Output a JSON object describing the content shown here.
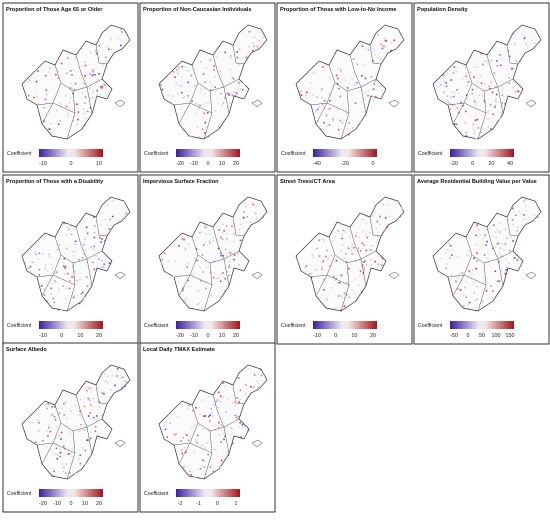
{
  "panels": [
    {
      "title": "Proportion of Those Age 65 or Older",
      "legend_label": "Coefficient",
      "ticks": [
        -10,
        0,
        10
      ]
    },
    {
      "title": "Proportion of Non-Caucasian Individuals",
      "legend_label": "Coefficient",
      "ticks": [
        -20,
        -10,
        0,
        10,
        20
      ]
    },
    {
      "title": "Proportion of Those with Low-to-No Income",
      "legend_label": "Coefficient",
      "ticks": [
        -40,
        -20,
        0
      ]
    },
    {
      "title": "Population Density",
      "legend_label": "Coefficient",
      "ticks": [
        -20,
        0,
        20,
        40
      ]
    },
    {
      "title": "Proportion of Those with a Disability",
      "legend_label": "Coefficient",
      "ticks": [
        -10,
        0,
        10,
        20
      ]
    },
    {
      "title": "Impervious Surface Fraction",
      "legend_label": "Coefficient",
      "ticks": [
        -20,
        -10,
        0,
        10,
        20
      ]
    },
    {
      "title": "Street Trees/CT Area",
      "legend_label": "Coefficient",
      "ticks": [
        -10,
        0,
        10,
        20
      ]
    },
    {
      "title": "Average Residential Building Value per Value",
      "legend_label": "Coefficient",
      "ticks": [
        -50,
        0,
        50,
        100,
        150
      ]
    },
    {
      "title": "Surface Albedo",
      "legend_label": "Coefficient",
      "ticks": [
        -20,
        -10,
        0,
        10,
        20
      ]
    },
    {
      "title": "Local Daily TMAX Estimate",
      "legend_label": "Coefficient",
      "ticks": [
        -2,
        -1,
        0,
        1
      ]
    }
  ]
}
